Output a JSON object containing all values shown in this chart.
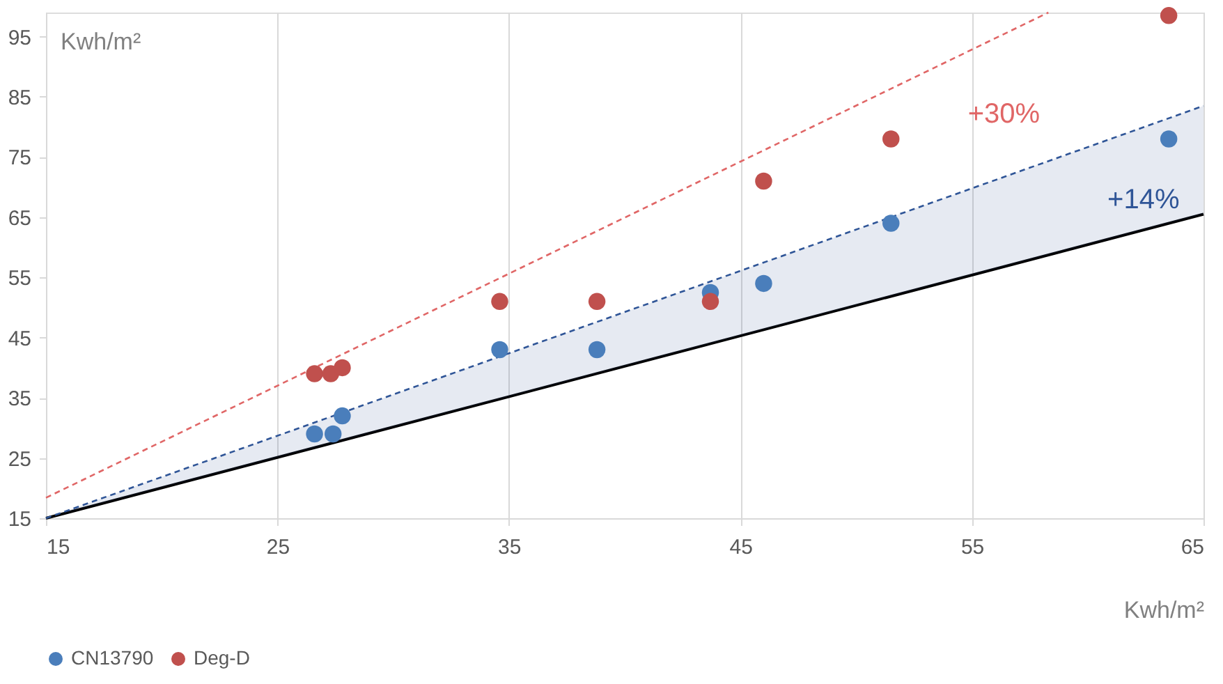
{
  "chart_data": {
    "type": "scatter",
    "xlabel": "Kwh/m²",
    "ylabel": "Kwh/m²",
    "xlim": [
      15,
      65
    ],
    "ylim": [
      15,
      99
    ],
    "xticks": [
      15,
      25,
      35,
      45,
      55,
      65
    ],
    "yticks": [
      15,
      25,
      35,
      45,
      55,
      65,
      75,
      85,
      95
    ],
    "grid": "x",
    "legend": "bottom",
    "series": [
      {
        "type": "line",
        "color": "#000000",
        "line_style": "solid",
        "marker": "none",
        "x": [
          15,
          65
        ],
        "values": [
          15,
          65.5
        ]
      },
      {
        "type": "line",
        "name": "+14%",
        "color": "#2f5597",
        "line_style": "dashed",
        "marker": "none",
        "x": [
          15,
          65
        ],
        "values": [
          15,
          83.5
        ],
        "lower": [
          15,
          65.5
        ],
        "upper": [
          15,
          83.5
        ]
      },
      {
        "type": "line",
        "name": "+30%",
        "color": "#e06666",
        "line_style": "dashed",
        "marker": "none",
        "x": [
          15,
          58.3
        ],
        "values": [
          18.4,
          99
        ]
      },
      {
        "name": "CN13790",
        "color": "#4a7ebb",
        "marker": "circle",
        "x": [
          26.6,
          27.4,
          27.8,
          34.6,
          38.8,
          43.7,
          46.0,
          51.5,
          63.5
        ],
        "values": [
          29,
          29,
          32,
          43,
          43,
          52.5,
          54,
          64,
          78
        ]
      },
      {
        "name": "Deg-D",
        "color": "#c0504d",
        "marker": "circle",
        "x": [
          26.6,
          27.3,
          27.8,
          34.6,
          38.8,
          43.7,
          46.0,
          51.5,
          63.5
        ],
        "values": [
          39,
          39,
          40,
          51,
          51,
          51,
          71,
          78,
          98.5
        ]
      }
    ]
  }
}
